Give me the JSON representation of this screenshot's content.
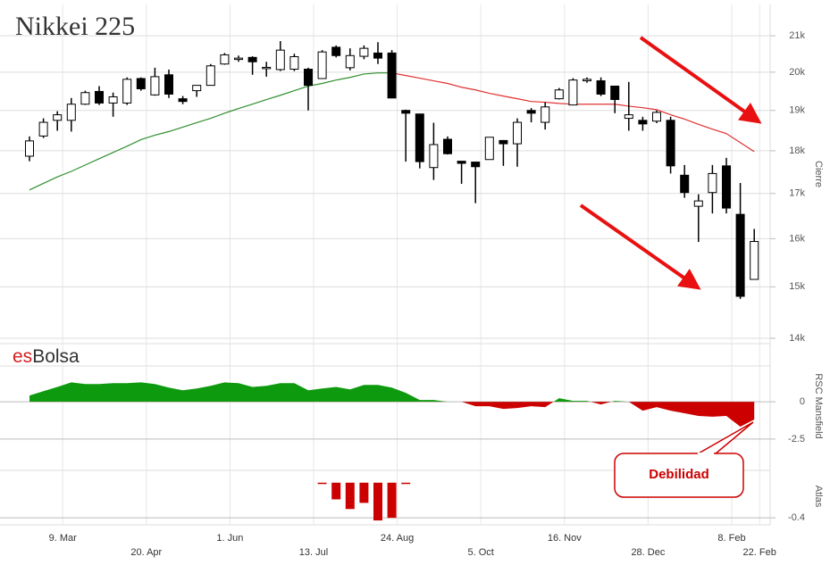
{
  "logo": {
    "prefix": "es",
    "name": "Bolsa"
  },
  "chart_data": [
    {
      "type": "candlestick",
      "title": "Nikkei 225",
      "y_label": "Cierre",
      "log_scale": true,
      "ylim": [
        13900,
        21900
      ],
      "yticks": [
        {
          "value": 14000,
          "label": "14k"
        },
        {
          "value": 15000,
          "label": "15k"
        },
        {
          "value": 16000,
          "label": "16k"
        },
        {
          "value": 17000,
          "label": "17k"
        },
        {
          "value": 18000,
          "label": "18k"
        },
        {
          "value": 19000,
          "label": "19k"
        },
        {
          "value": 20000,
          "label": "20k"
        },
        {
          "value": 21000,
          "label": "21k"
        }
      ],
      "grid": true,
      "up_color": "#ffffff",
      "down_color": "#000000",
      "categories": [
        null,
        null,
        "9. Mar",
        null,
        null,
        null,
        null,
        null,
        "20. Apr",
        null,
        null,
        null,
        null,
        null,
        "1. Jun",
        null,
        null,
        null,
        null,
        null,
        "13. Jul",
        null,
        null,
        null,
        null,
        null,
        "24. Aug",
        null,
        null,
        null,
        null,
        null,
        "5. Oct",
        null,
        null,
        null,
        null,
        null,
        "16. Nov",
        null,
        null,
        null,
        null,
        null,
        "28. Dec",
        null,
        null,
        null,
        null,
        null,
        "8. Feb",
        null,
        "22. Feb"
      ],
      "open": [
        17870,
        18360,
        18750,
        18750,
        19160,
        19490,
        19190,
        19190,
        19830,
        19400,
        19930,
        19300,
        19510,
        19650,
        20220,
        20360,
        20400,
        20100,
        20070,
        20080,
        20080,
        19830,
        20680,
        20120,
        20430,
        20520,
        20520,
        19000,
        18910,
        17600,
        18280,
        17750,
        17730,
        17790,
        18250,
        18170,
        19000,
        18700,
        19300,
        19140,
        19770,
        19770,
        19630,
        18800,
        18750,
        18730,
        18750,
        17420,
        16710,
        17020,
        17640,
        16530,
        15150
      ],
      "high": [
        18350,
        18800,
        18980,
        19320,
        19510,
        19630,
        19460,
        19860,
        19860,
        20120,
        20070,
        19370,
        19650,
        20220,
        20520,
        20450,
        20430,
        20280,
        20850,
        20500,
        20120,
        20600,
        20730,
        20650,
        20730,
        20820,
        20600,
        19020,
        18910,
        18690,
        18350,
        17750,
        17730,
        18330,
        18260,
        18800,
        19060,
        19210,
        19580,
        19840,
        19860,
        19860,
        19630,
        19740,
        18840,
        19000,
        18840,
        17660,
        16980,
        17660,
        17830,
        17240,
        16210
      ],
      "low": [
        17750,
        18310,
        18490,
        18470,
        19140,
        19140,
        18840,
        19140,
        19510,
        19380,
        19320,
        19160,
        19350,
        19650,
        20200,
        20280,
        19930,
        19880,
        20030,
        20030,
        19000,
        19830,
        20400,
        20050,
        20350,
        20220,
        19320,
        17740,
        17580,
        17310,
        17910,
        17220,
        16780,
        17790,
        17640,
        17620,
        18700,
        18520,
        19280,
        19140,
        19720,
        19370,
        18930,
        18490,
        18490,
        18680,
        17460,
        16900,
        15930,
        16550,
        16550,
        14760,
        15150
      ],
      "close": [
        18240,
        18700,
        18890,
        19160,
        19460,
        19190,
        19350,
        19810,
        19560,
        19880,
        19420,
        19230,
        19650,
        20170,
        20470,
        20380,
        20280,
        20130,
        20600,
        20420,
        19650,
        20550,
        20450,
        20450,
        20650,
        20380,
        19320,
        18930,
        17740,
        18150,
        17930,
        17700,
        17620,
        18330,
        18170,
        18700,
        18930,
        19090,
        19530,
        19790,
        19810,
        19420,
        19280,
        18890,
        18660,
        18950,
        17640,
        17020,
        16830,
        17460,
        16670,
        14810,
        15940
      ],
      "series": [
        {
          "color": "#2f8f2f",
          "values": [
            17080,
            17230,
            17380,
            17510,
            17660,
            17810,
            17960,
            18110,
            18270,
            18380,
            18470,
            18580,
            18690,
            18800,
            18930,
            19050,
            19160,
            19280,
            19390,
            19510,
            19630,
            19700,
            19790,
            19860,
            19950,
            19980,
            19980,
            null,
            null,
            null,
            null,
            null,
            null,
            null,
            null,
            null,
            null,
            null,
            null,
            null,
            null,
            null,
            null,
            null,
            null,
            null,
            null,
            null,
            null,
            null,
            null,
            null,
            null
          ]
        },
        {
          "color": "#e03030",
          "values": [
            null,
            null,
            null,
            null,
            null,
            null,
            null,
            null,
            null,
            null,
            null,
            null,
            null,
            null,
            null,
            null,
            null,
            null,
            null,
            null,
            null,
            null,
            null,
            null,
            null,
            null,
            19980,
            19910,
            19840,
            19770,
            19700,
            19600,
            19530,
            19440,
            19370,
            19300,
            19230,
            19210,
            19180,
            19160,
            19160,
            19160,
            19160,
            19110,
            19070,
            19020,
            18890,
            18780,
            18650,
            18530,
            18420,
            18200,
            17980
          ]
        }
      ]
    },
    {
      "type": "area",
      "y_label": "RSC Mansfield",
      "ylim": [
        -4.6,
        3.9
      ],
      "yticks": [
        0,
        -2.5
      ],
      "positive_color": "#0e9a0e",
      "negative_color": "#cc0000",
      "annotation": "Debilidad",
      "values": [
        0.42,
        0.71,
        1.0,
        1.3,
        1.19,
        1.19,
        1.25,
        1.25,
        1.3,
        1.19,
        0.95,
        0.77,
        0.89,
        1.07,
        1.3,
        1.25,
        1.0,
        1.07,
        1.25,
        1.25,
        0.77,
        0.89,
        1.0,
        0.83,
        1.13,
        1.13,
        0.95,
        0.6,
        0.12,
        0.12,
        0,
        0,
        -0.3,
        -0.3,
        -0.48,
        -0.42,
        -0.3,
        -0.36,
        0.24,
        0.06,
        0.06,
        -0.18,
        0.06,
        0,
        -0.6,
        -0.36,
        -0.6,
        -0.77,
        -0.95,
        -1.0,
        -0.95,
        -1.67,
        -1.19
      ]
    },
    {
      "type": "bar",
      "y_label": "Atlas",
      "ylim": [
        -0.48,
        0.14
      ],
      "yticks": [
        -0.4
      ],
      "color": "#cc0000",
      "values": [
        null,
        null,
        null,
        null,
        null,
        null,
        null,
        null,
        null,
        null,
        null,
        null,
        null,
        null,
        null,
        null,
        null,
        null,
        null,
        null,
        null,
        -0.01,
        -0.19,
        -0.3,
        -0.23,
        -0.43,
        -0.4,
        -0.01,
        null,
        null,
        null,
        null,
        null,
        null,
        null,
        null,
        null,
        null,
        null,
        null,
        null,
        null,
        null,
        null,
        null,
        null,
        null,
        null,
        null,
        null,
        null,
        null,
        null
      ]
    }
  ]
}
